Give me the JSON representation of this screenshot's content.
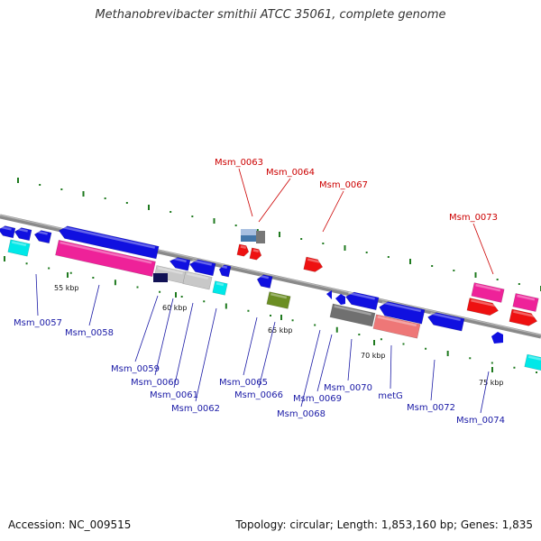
{
  "title": "Methanobrevibacter smithii ATCC 35061, complete genome",
  "footer": {
    "accession": "Accession: NC_009515",
    "summary": "Topology: circular; Length: 1,853,160 bp; Genes: 1,835"
  },
  "colors": {
    "backbone": "#8a8a8a",
    "tick_major": "#1f7a1f",
    "tick_minor": "#1f7a1f",
    "label_highlight": "#cc0000",
    "label_normal": "#1a1aa6",
    "gene_blue": "#1010e0",
    "gene_red": "#ee1111",
    "gene_pink": "#ee2299",
    "gene_gray": "#c8c8c8",
    "gene_darkgray": "#707070",
    "gene_cyan": "#00e8e8",
    "gene_olive": "#6b8e23",
    "gene_salmon": "#ee7777"
  },
  "ticks": [
    {
      "label": "55 kbp"
    },
    {
      "label": "60 kbp"
    },
    {
      "label": "65 kbp"
    },
    {
      "label": "70 kbp"
    },
    {
      "label": "75 kbp"
    }
  ],
  "labels_top": [
    {
      "text": "Msm_0063",
      "color": "red"
    },
    {
      "text": "Msm_0064",
      "color": "red"
    },
    {
      "text": "Msm_0067",
      "color": "red"
    },
    {
      "text": "Msm_0073",
      "color": "red"
    }
  ],
  "labels_bottom": [
    {
      "text": "Msm_0057"
    },
    {
      "text": "Msm_0058"
    },
    {
      "text": "Msm_0059"
    },
    {
      "text": "Msm_0060"
    },
    {
      "text": "Msm_0061"
    },
    {
      "text": "Msm_0062"
    },
    {
      "text": "Msm_0065"
    },
    {
      "text": "Msm_0066"
    },
    {
      "text": "Msm_0068"
    },
    {
      "text": "Msm_0069"
    },
    {
      "text": "Msm_0070"
    },
    {
      "text": "metG"
    },
    {
      "text": "Msm_0072"
    },
    {
      "text": "Msm_0074"
    }
  ],
  "features": [
    {
      "id": "f1",
      "color": "gene_blue",
      "dir": -1
    },
    {
      "id": "f2",
      "color": "gene_blue",
      "dir": -1
    },
    {
      "id": "f3",
      "color": "gene_blue",
      "dir": -1
    },
    {
      "id": "f4",
      "color": "gene_cyan",
      "dir": 0
    },
    {
      "id": "f5",
      "color": "gene_blue",
      "dir": -1
    },
    {
      "id": "f6",
      "color": "gene_pink",
      "dir": 0
    },
    {
      "id": "f7",
      "color": "gene_gray",
      "dir": 0
    },
    {
      "id": "f8",
      "color": "gene_blue",
      "dir": -1
    },
    {
      "id": "f9",
      "color": "gene_blue",
      "dir": -1
    },
    {
      "id": "f10",
      "color": "gene_gray",
      "dir": 0
    },
    {
      "id": "f11",
      "color": "gene_cyan",
      "dir": 0
    },
    {
      "id": "f12",
      "color": "gene_blue",
      "dir": -1
    },
    {
      "id": "f13",
      "color": "gene_red",
      "dir": 1
    },
    {
      "id": "f14",
      "color": "gene_red",
      "dir": 1
    },
    {
      "id": "f15",
      "color": "gene_blue",
      "dir": -1
    },
    {
      "id": "f16",
      "color": "gene_olive",
      "dir": 0
    },
    {
      "id": "f17",
      "color": "gene_red",
      "dir": 1
    },
    {
      "id": "f18",
      "color": "gene_blue",
      "dir": -1
    },
    {
      "id": "f19",
      "color": "gene_darkgray",
      "dir": 0
    },
    {
      "id": "f20",
      "color": "gene_salmon",
      "dir": 0
    },
    {
      "id": "f21",
      "color": "gene_blue",
      "dir": -1
    },
    {
      "id": "f22",
      "color": "gene_pink",
      "dir": 0
    },
    {
      "id": "f23",
      "color": "gene_red",
      "dir": 1
    },
    {
      "id": "f24",
      "color": "gene_red",
      "dir": 1
    },
    {
      "id": "f25",
      "color": "gene_pink",
      "dir": 0
    },
    {
      "id": "f26",
      "color": "gene_blue",
      "dir": -1
    },
    {
      "id": "f27",
      "color": "gene_cyan",
      "dir": 0
    }
  ]
}
